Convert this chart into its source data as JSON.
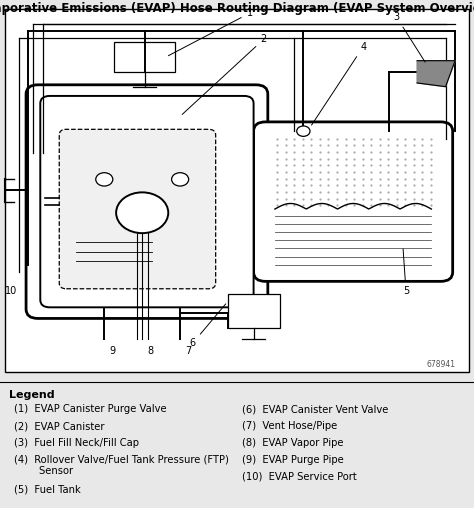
{
  "title": "Evaporative Emissions (EVAP) Hose Routing Diagram (EVAP System Overview)",
  "legend_title": "Legend",
  "legend_items_left": [
    "(1)  EVAP Canister Purge Valve",
    "(2)  EVAP Canister",
    "(3)  Fuel Fill Neck/Fill Cap",
    "(4)  Rollover Valve/Fuel Tank Pressure (FTP)\n        Sensor",
    "(5)  Fuel Tank"
  ],
  "legend_items_right": [
    "(6)  EVAP Canister Vent Valve",
    "(7)  Vent Hose/Pipe",
    "(8)  EVAP Vapor Pipe",
    "(9)  EVAP Purge Pipe",
    "(10)  EVAP Service Port"
  ],
  "ref_number": "678941",
  "bg_color": "#e8e8e8",
  "diagram_bg": "#ffffff",
  "line_color": "#000000",
  "title_fontsize": 8.5,
  "legend_fontsize": 7.2
}
